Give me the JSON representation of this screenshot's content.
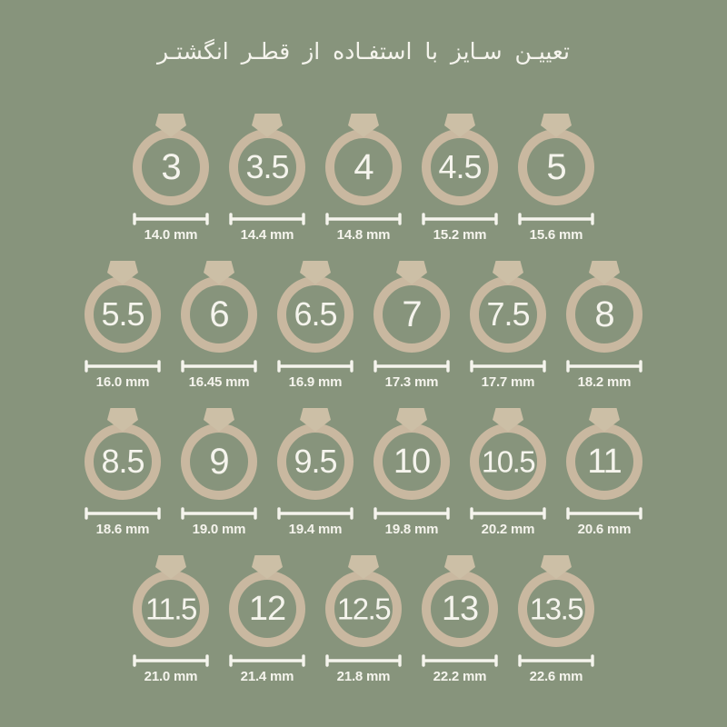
{
  "title": "تعییـن سـایز با استفـاده از قطـر انگشتـر",
  "colors": {
    "background": "#87947C",
    "ring_band": "#C9B8A0",
    "diamond": "#CCBFA6",
    "text": "#F5F4ED"
  },
  "rows": [
    {
      "rings": [
        {
          "size": "3",
          "diameter": "14.0 mm"
        },
        {
          "size": "3.5",
          "diameter": "14.4 mm"
        },
        {
          "size": "4",
          "diameter": "14.8 mm"
        },
        {
          "size": "4.5",
          "diameter": "15.2 mm"
        },
        {
          "size": "5",
          "diameter": "15.6 mm"
        }
      ]
    },
    {
      "rings": [
        {
          "size": "5.5",
          "diameter": "16.0 mm"
        },
        {
          "size": "6",
          "diameter": "16.45 mm"
        },
        {
          "size": "6.5",
          "diameter": "16.9 mm"
        },
        {
          "size": "7",
          "diameter": "17.3 mm"
        },
        {
          "size": "7.5",
          "diameter": "17.7 mm"
        },
        {
          "size": "8",
          "diameter": "18.2 mm"
        }
      ]
    },
    {
      "rings": [
        {
          "size": "8.5",
          "diameter": "18.6 mm"
        },
        {
          "size": "9",
          "diameter": "19.0 mm"
        },
        {
          "size": "9.5",
          "diameter": "19.4 mm"
        },
        {
          "size": "10",
          "diameter": "19.8 mm"
        },
        {
          "size": "10.5",
          "diameter": "20.2 mm"
        },
        {
          "size": "11",
          "diameter": "20.6 mm"
        }
      ]
    },
    {
      "rings": [
        {
          "size": "11.5",
          "diameter": "21.0 mm"
        },
        {
          "size": "12",
          "diameter": "21.4 mm"
        },
        {
          "size": "12.5",
          "diameter": "21.8 mm"
        },
        {
          "size": "13",
          "diameter": "22.2 mm"
        },
        {
          "size": "13.5",
          "diameter": "22.6 mm"
        }
      ]
    }
  ]
}
